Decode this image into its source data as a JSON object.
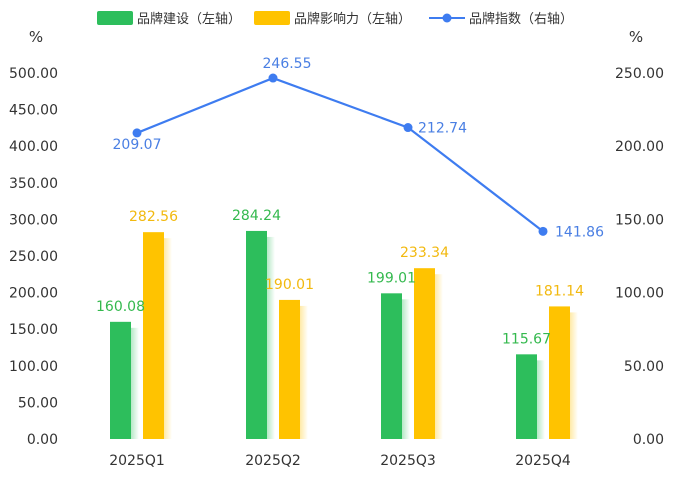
{
  "chart_data": {
    "type": "bar",
    "categories": [
      "2025Q1",
      "2025Q2",
      "2025Q3",
      "2025Q4"
    ],
    "series": [
      {
        "name": "品牌建设（左轴）",
        "type": "bar",
        "axis": "left",
        "color": "#2DBE5C",
        "label_color": "#34B94E",
        "values": [
          160.08,
          284.24,
          199.01,
          115.67
        ]
      },
      {
        "name": "品牌影响力（左轴）",
        "type": "bar",
        "axis": "left",
        "color": "#FFC300",
        "label_color": "#F2B90F",
        "values": [
          282.56,
          190.01,
          233.34,
          181.14
        ]
      },
      {
        "name": "品牌指数（右轴）",
        "type": "line",
        "axis": "right",
        "color": "#3E7CF0",
        "label_color": "#4A7FE3",
        "values": [
          209.07,
          246.55,
          212.74,
          141.86
        ]
      }
    ],
    "left_axis": {
      "unit": "%",
      "ylim": [
        0,
        500
      ],
      "ticks": [
        "0.00",
        "50.00",
        "100.00",
        "150.00",
        "200.00",
        "250.00",
        "300.00",
        "350.00",
        "400.00",
        "450.00",
        "500.00"
      ]
    },
    "right_axis": {
      "unit": "%",
      "ylim": [
        0,
        250
      ],
      "ticks": [
        "0.00",
        "50.00",
        "100.00",
        "150.00",
        "200.00",
        "250.00"
      ]
    },
    "data_labels": {
      "series_0": [
        "160.08",
        "284.24",
        "199.01",
        "115.67"
      ],
      "series_1": [
        "282.56",
        "190.01",
        "233.34",
        "181.14"
      ],
      "series_2": [
        "209.07",
        "246.55",
        "212.74",
        "141.86"
      ]
    },
    "legend_position": "top",
    "grid": false
  }
}
